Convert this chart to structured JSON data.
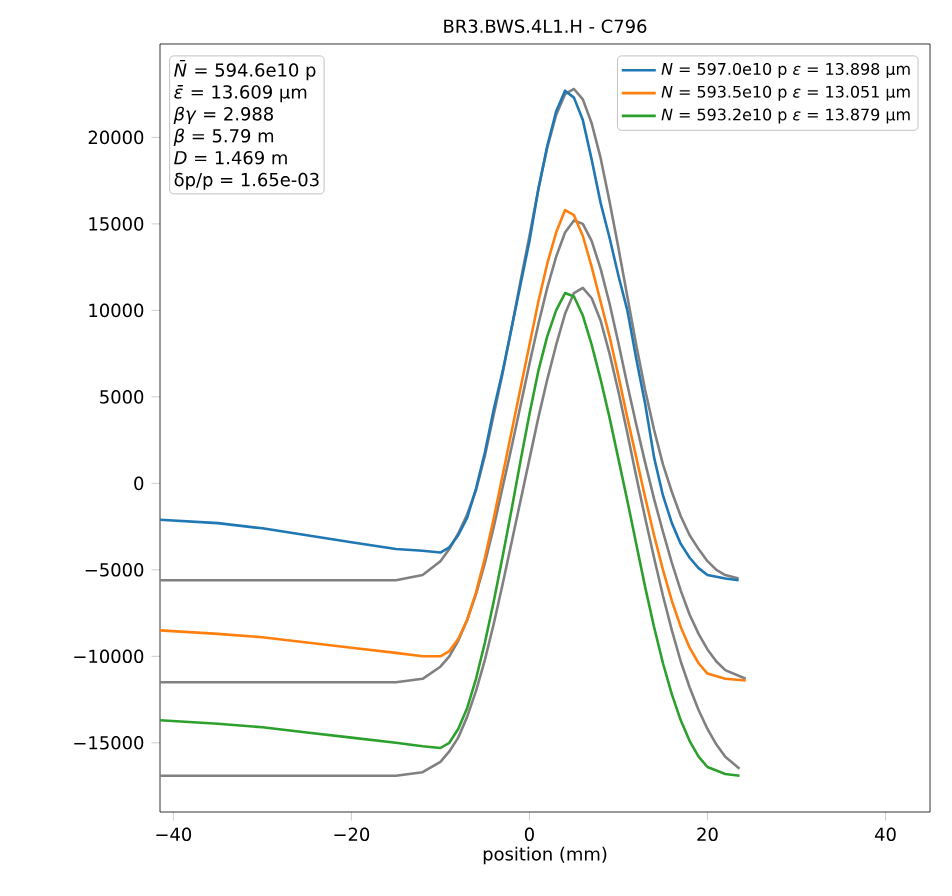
{
  "chart_data": {
    "type": "line",
    "title": "BR3.BWS.4L1.H - C796",
    "xlabel": "position (mm)",
    "xlim": [
      -41.5,
      45
    ],
    "ylim": [
      -19000,
      25400
    ],
    "xticks": [
      {
        "value": -40,
        "label": "−40"
      },
      {
        "value": -20,
        "label": "−20"
      },
      0,
      20,
      40
    ],
    "yticks": [
      {
        "value": -15000,
        "label": "−15000"
      },
      {
        "value": -10000,
        "label": "−10000"
      },
      {
        "value": -5000,
        "label": "−5000"
      },
      0,
      5000,
      10000,
      15000,
      20000
    ],
    "grid": false,
    "legend": "top right",
    "marker": "none",
    "line_style": "solid",
    "annotations": [
      "*N̄* = 594.6e10 p",
      "*ε̄* = 13.609 μm",
      "*βγ* = 2.988",
      "*β* = 5.79 m",
      "*D* = 1.469 m",
      "δp/p = 1.65e-03"
    ],
    "series": [
      {
        "name": "*N* = 597.0e10 p *ε* = 13.898 μm",
        "color": "#1f77b4",
        "x": [
          -41.5,
          -35,
          -30,
          -25,
          -20,
          -15,
          -12,
          -10,
          -9,
          -8,
          -7,
          -6,
          -5,
          -4,
          -3,
          -2,
          -1,
          0,
          1,
          2,
          3,
          4,
          5,
          6,
          7,
          8,
          9,
          10,
          11,
          12,
          13,
          14,
          15,
          16,
          17,
          18,
          19,
          20,
          22,
          23.5
        ],
        "values": [
          -2100,
          -2300,
          -2600,
          -3000,
          -3400,
          -3800,
          -3900,
          -4000,
          -3700,
          -3000,
          -2000,
          -300,
          1800,
          4300,
          6500,
          9000,
          11500,
          14000,
          17000,
          19500,
          21500,
          22700,
          22300,
          21000,
          18700,
          16200,
          14200,
          12000,
          10000,
          7200,
          4600,
          1500,
          -700,
          -2300,
          -3500,
          -4300,
          -4900,
          -5300,
          -5500,
          -5600
        ]
      },
      {
        "name": "*N* = 593.5e10 p *ε* = 13.051 μm",
        "color": "#ff7f0e",
        "x": [
          -41.5,
          -35,
          -30,
          -25,
          -20,
          -15,
          -12,
          -10,
          -9,
          -8,
          -7,
          -6,
          -5,
          -4,
          -3,
          -2,
          -1,
          0,
          1,
          2,
          3,
          4,
          5,
          6,
          7,
          8,
          9,
          10,
          11,
          12,
          13,
          14,
          15,
          16,
          17,
          18,
          19,
          20,
          22,
          24.3
        ],
        "values": [
          -8500,
          -8700,
          -8900,
          -9200,
          -9500,
          -9800,
          -10000,
          -10000,
          -9700,
          -9000,
          -7900,
          -6300,
          -4300,
          -2000,
          500,
          3000,
          5500,
          8000,
          10500,
          12700,
          14500,
          15800,
          15500,
          14300,
          12500,
          10500,
          8500,
          6200,
          3800,
          1500,
          -800,
          -3000,
          -5000,
          -6800,
          -8300,
          -9500,
          -10400,
          -11000,
          -11300,
          -11400
        ]
      },
      {
        "name": "*N* = 593.2e10 p *ε* = 13.879 μm",
        "color": "#2ca02c",
        "x": [
          -41.5,
          -35,
          -30,
          -25,
          -20,
          -15,
          -12,
          -10,
          -9,
          -8,
          -7,
          -6,
          -5,
          -4,
          -3,
          -2,
          -1,
          0,
          1,
          2,
          3,
          4,
          5,
          6,
          7,
          8,
          9,
          10,
          11,
          12,
          13,
          14,
          15,
          16,
          17,
          18,
          19,
          20,
          22,
          23.6
        ],
        "values": [
          -13700,
          -13900,
          -14100,
          -14400,
          -14700,
          -15000,
          -15200,
          -15300,
          -15000,
          -14200,
          -13000,
          -11300,
          -9200,
          -6800,
          -4200,
          -1500,
          1300,
          4000,
          6500,
          8500,
          10000,
          11000,
          10800,
          9700,
          8000,
          6000,
          3800,
          1400,
          -1000,
          -3500,
          -6000,
          -8300,
          -10400,
          -12200,
          -13700,
          -14900,
          -15800,
          -16400,
          -16800,
          -16900
        ]
      },
      {
        "color": "#808080",
        "x": [
          -41.5,
          -15,
          -14,
          -12,
          -10,
          -9,
          -8,
          -7,
          -6,
          -5,
          -4,
          -3,
          -2,
          -1,
          0,
          1,
          2,
          3,
          4,
          5,
          6,
          7,
          8,
          9,
          10,
          11,
          12,
          13,
          14,
          15,
          16,
          17,
          18,
          19,
          20,
          21,
          22,
          23.5
        ],
        "values": [
          -5600,
          -5600,
          -5500,
          -5300,
          -4500,
          -3800,
          -2900,
          -1800,
          -400,
          1600,
          4000,
          6400,
          9000,
          11700,
          14300,
          17000,
          19400,
          21300,
          22500,
          22800,
          22200,
          20800,
          18800,
          16300,
          13600,
          10800,
          8000,
          5400,
          3100,
          1100,
          -500,
          -1900,
          -3000,
          -3800,
          -4500,
          -5000,
          -5300,
          -5500
        ]
      },
      {
        "color": "#808080",
        "x": [
          -41.5,
          -15,
          -12,
          -10,
          -9,
          -8,
          -7,
          -6,
          -5,
          -4,
          -3,
          -2,
          -1,
          0,
          1,
          2,
          3,
          4,
          5,
          6,
          7,
          8,
          9,
          10,
          11,
          12,
          13,
          14,
          15,
          16,
          17,
          18,
          19,
          20,
          21,
          22,
          24.3
        ],
        "values": [
          -11500,
          -11500,
          -11300,
          -10600,
          -10000,
          -9100,
          -7900,
          -6400,
          -4600,
          -2500,
          -200,
          2100,
          4500,
          6900,
          9200,
          11300,
          13100,
          14500,
          15200,
          15000,
          14000,
          12400,
          10400,
          8100,
          5700,
          3400,
          1200,
          -900,
          -2800,
          -4600,
          -6200,
          -7600,
          -8700,
          -9600,
          -10300,
          -10800,
          -11300
        ]
      },
      {
        "color": "#808080",
        "x": [
          -41.5,
          -15,
          -12,
          -10,
          -9,
          -8,
          -7,
          -6,
          -5,
          -4,
          -3,
          -2,
          -1,
          0,
          1,
          2,
          3,
          4,
          5,
          6,
          7,
          8,
          9,
          10,
          11,
          12,
          13,
          14,
          15,
          16,
          17,
          18,
          19,
          20,
          21,
          22,
          23.6
        ],
        "values": [
          -16900,
          -16900,
          -16700,
          -16100,
          -15500,
          -14700,
          -13500,
          -12000,
          -10200,
          -8100,
          -5800,
          -3400,
          -1000,
          1400,
          3800,
          6000,
          8000,
          9800,
          11000,
          11300,
          10700,
          9400,
          7500,
          5300,
          2900,
          400,
          -2000,
          -4300,
          -6500,
          -8500,
          -10300,
          -11800,
          -13100,
          -14200,
          -15100,
          -15800,
          -16500
        ]
      }
    ]
  }
}
